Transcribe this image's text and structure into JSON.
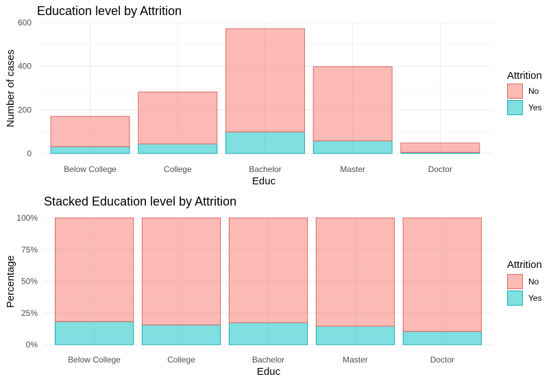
{
  "chart_data": [
    {
      "type": "bar",
      "stacked": true,
      "title": "Education level by Attrition",
      "xlabel": "Educ",
      "ylabel": "Number of cases",
      "categories": [
        "Below College",
        "College",
        "Bachelor",
        "Master",
        "Doctor"
      ],
      "series": [
        {
          "name": "No",
          "values": [
            139,
            238,
            473,
            340,
            43
          ],
          "color": "#F8766D"
        },
        {
          "name": "Yes",
          "values": [
            31,
            44,
            99,
            58,
            5
          ],
          "color": "#00BFC4"
        }
      ],
      "ylim": [
        0,
        600
      ],
      "yticks": [
        0,
        200,
        400,
        600
      ],
      "ytick_labels": [
        "0",
        "200",
        "400",
        "600"
      ],
      "grid": true,
      "legend": {
        "title": "Attrition",
        "position": "right",
        "labels": [
          "No",
          "Yes"
        ]
      }
    },
    {
      "type": "bar",
      "stacked": true,
      "percent": true,
      "title": "Stacked Education level by Attrition",
      "xlabel": "Educ",
      "ylabel": "Percentage",
      "categories": [
        "Below College",
        "College",
        "Bachelor",
        "Master",
        "Doctor"
      ],
      "series": [
        {
          "name": "No",
          "values": [
            0.818,
            0.844,
            0.827,
            0.854,
            0.896
          ],
          "color": "#F8766D"
        },
        {
          "name": "Yes",
          "values": [
            0.182,
            0.156,
            0.173,
            0.146,
            0.104
          ],
          "color": "#00BFC4"
        }
      ],
      "ylim": [
        0,
        1
      ],
      "yticks": [
        0,
        0.25,
        0.5,
        0.75,
        1
      ],
      "ytick_labels": [
        "0%",
        "25%",
        "50%",
        "75%",
        "100%"
      ],
      "grid": true,
      "legend": {
        "title": "Attrition",
        "position": "right",
        "labels": [
          "No",
          "Yes"
        ]
      }
    }
  ]
}
